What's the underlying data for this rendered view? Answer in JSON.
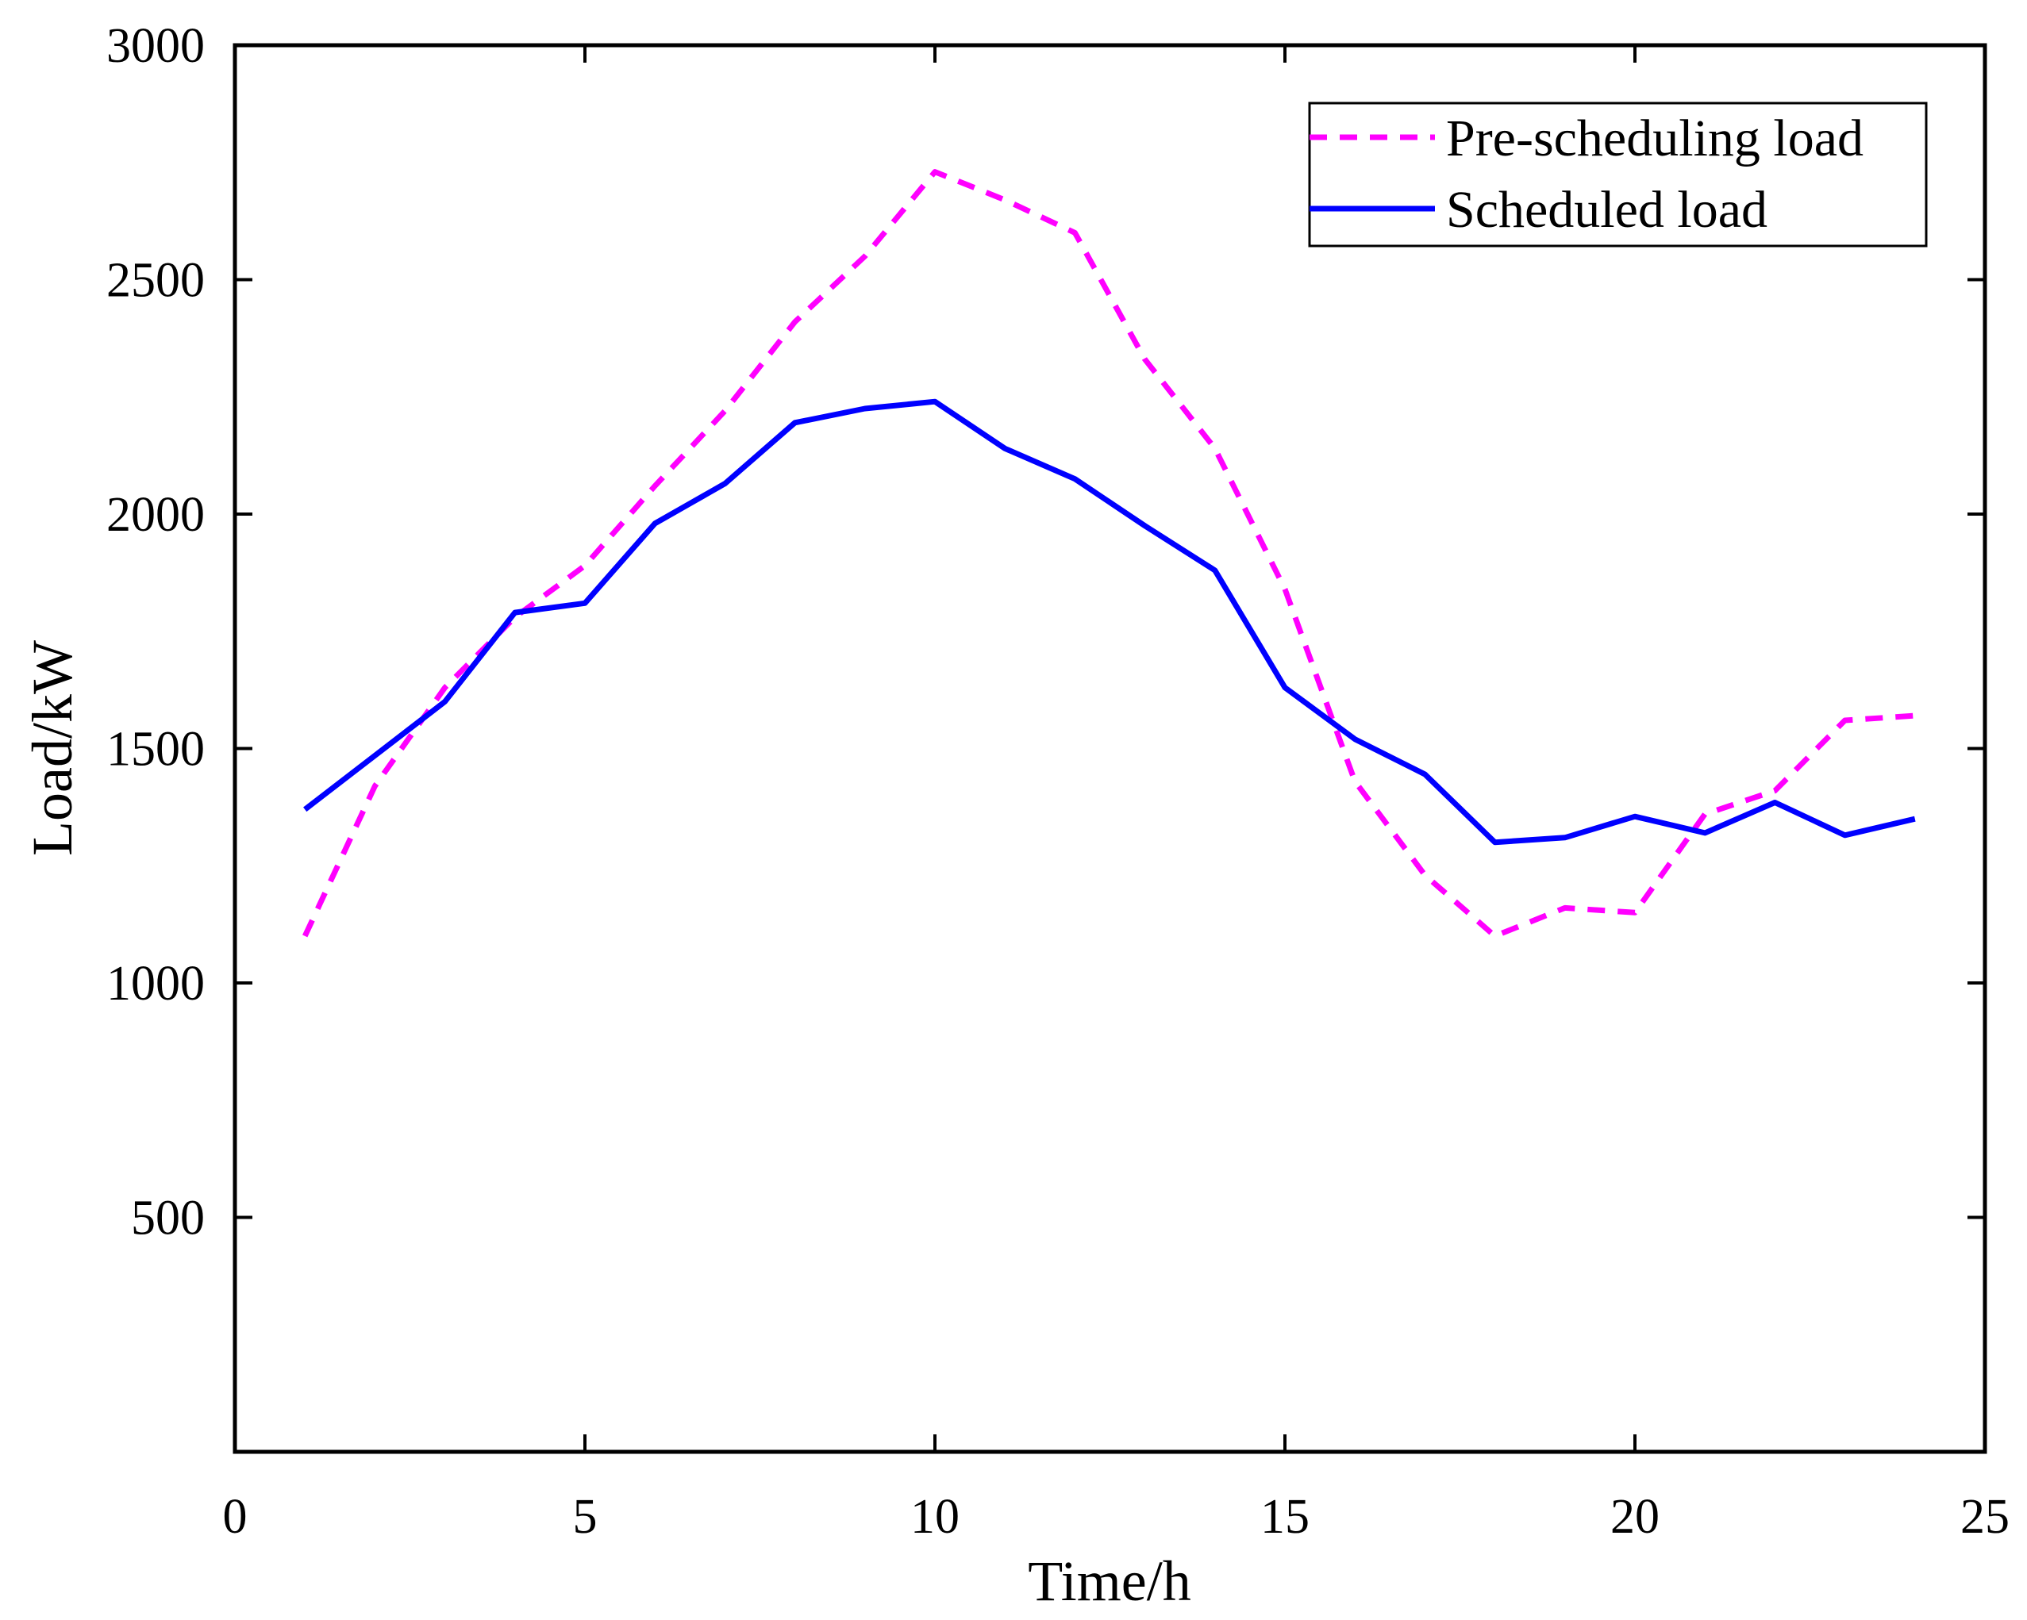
{
  "chart_data": {
    "type": "line",
    "title": "",
    "xlabel": "Time/h",
    "ylabel": "Load/kW",
    "xlim": [
      0,
      25
    ],
    "ylim": [
      0,
      3000
    ],
    "xticks": [
      0,
      5,
      10,
      15,
      20,
      25
    ],
    "xtick_labels": [
      "0",
      "5",
      "10",
      "15",
      "20",
      "25"
    ],
    "yticks": [
      500,
      1000,
      1500,
      2000,
      2500,
      3000
    ],
    "ytick_labels": [
      "500",
      "1000",
      "1500",
      "2000",
      "2500",
      "3000"
    ],
    "grid": false,
    "legend_position": "top-right",
    "x": [
      1,
      2,
      3,
      4,
      5,
      6,
      7,
      8,
      9,
      10,
      11,
      12,
      13,
      14,
      15,
      16,
      17,
      18,
      19,
      20,
      21,
      22,
      23,
      24
    ],
    "series": [
      {
        "name": "Pre-scheduling load",
        "style": "dashed",
        "color": "#ff00ff",
        "values": [
          1100,
          1420,
          1630,
          1780,
          1890,
          2060,
          2220,
          2410,
          2550,
          2730,
          2670,
          2600,
          2330,
          2140,
          1840,
          1430,
          1230,
          1100,
          1160,
          1150,
          1360,
          1410,
          1560,
          1570
        ]
      },
      {
        "name": "Scheduled load",
        "style": "solid",
        "color": "#0000ff",
        "values": [
          1370,
          1485,
          1600,
          1790,
          1810,
          1980,
          2065,
          2195,
          2225,
          2240,
          2140,
          2075,
          1975,
          1880,
          1630,
          1520,
          1445,
          1300,
          1310,
          1355,
          1320,
          1385,
          1315,
          1350
        ]
      }
    ]
  }
}
